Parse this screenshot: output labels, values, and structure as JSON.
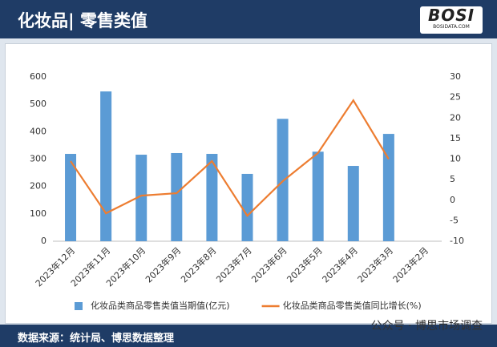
{
  "header": {
    "title": "化妆品| 零售类值",
    "logo": "BOSI",
    "logo_sub": "BOSIDATA.COM"
  },
  "chart_data": {
    "type": "bar",
    "categories": [
      "2023年12月",
      "2023年11月",
      "2023年10月",
      "2023年9月",
      "2023年8月",
      "2023年7月",
      "2023年6月",
      "2023年5月",
      "2023年4月",
      "2023年3月",
      "2023年2月"
    ],
    "series": [
      {
        "name": "化妆品类商品零售类值当期值(亿元)",
        "type": "bar",
        "color": "#5b9bd5",
        "values": [
          319,
          547,
          316,
          322,
          319,
          246,
          447,
          327,
          275,
          392,
          null
        ]
      },
      {
        "name": "化妆品类商品零售类值同比增长(%)",
        "type": "line",
        "axis": "y2",
        "color": "#ed7d31",
        "values": [
          9.5,
          -3.2,
          1.1,
          1.7,
          9.5,
          -3.8,
          4.6,
          11.5,
          24.3,
          10,
          null
        ]
      }
    ],
    "ylim": [
      0,
      600
    ],
    "yticks": [
      0,
      100,
      200,
      300,
      400,
      500,
      600
    ],
    "y2lim": [
      -10,
      30
    ],
    "y2ticks": [
      -10,
      -5,
      0,
      5,
      10,
      15,
      20,
      25,
      30
    ],
    "legend": "bottom"
  },
  "footer": {
    "source": "数据来源：统计局、博思数据整理",
    "account": "公众号 · 博思市场调查"
  }
}
